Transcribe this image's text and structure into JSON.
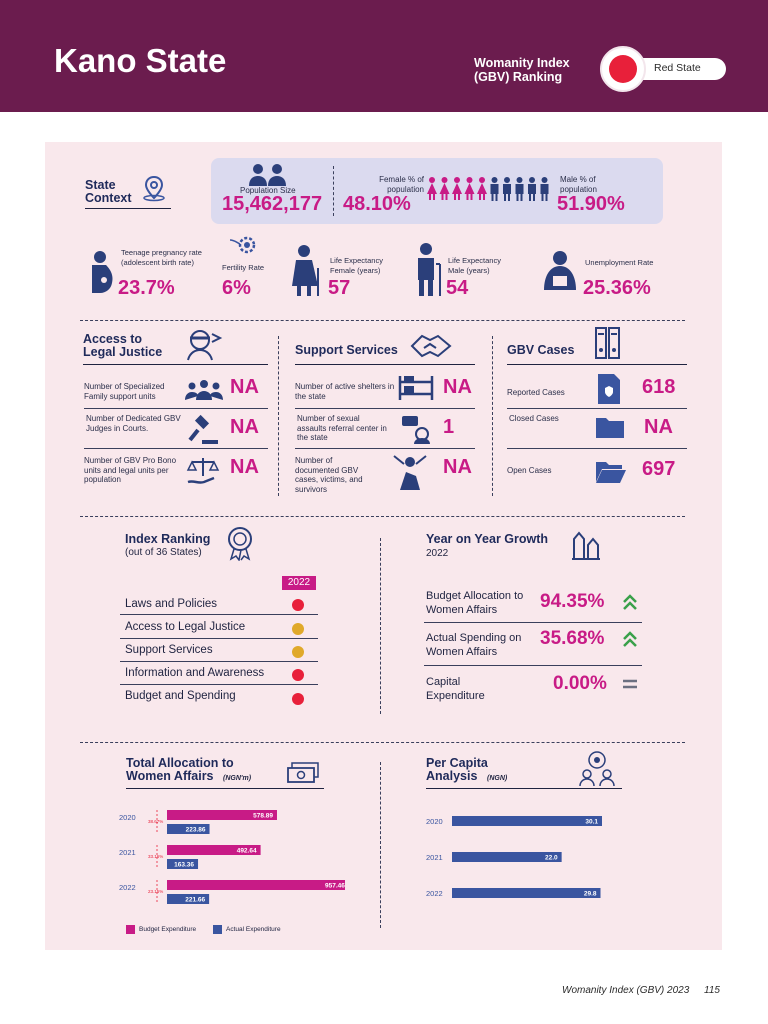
{
  "header": {
    "state_name": "Kano State",
    "index_title": "Womanity Index (GBV) Ranking",
    "ranking_label": "Red State",
    "ranking_color": "#e8203a"
  },
  "state_context": {
    "title": "State Context",
    "population_label": "Population Size",
    "population_value": "15,462,177",
    "female_label": "Female % of population",
    "female_value": "48.10%",
    "male_label": "Male % of population",
    "male_value": "51.90%",
    "teen_label": "Teenage pregnancy rate (adolescent birth rate)",
    "teen_value": "23.7%",
    "fertility_label": "Fertility Rate",
    "fertility_value": "6%",
    "life_f_label": "Life Expectancy Female (years)",
    "life_f_value": "57",
    "life_m_label": "Life Expectancy Male (years)",
    "life_m_value": "54",
    "unemp_label": "Unemployment Rate",
    "unemp_value": "25.36%"
  },
  "legal": {
    "title": "Access to Legal Justice",
    "items": [
      {
        "label": "Number of Specialized Family support units",
        "value": "NA"
      },
      {
        "label": "Number of Dedicated GBV Judges in Courts.",
        "value": "NA"
      },
      {
        "label": "Number of GBV Pro Bono units and legal units per population",
        "value": "NA"
      }
    ]
  },
  "support": {
    "title": "Support Services",
    "items": [
      {
        "label": "Number of active shelters in the state",
        "value": "NA"
      },
      {
        "label": "Number of sexual assaults referral center in the state",
        "value": "1"
      },
      {
        "label": "Number of documented GBV cases, victims, and survivors",
        "value": "NA"
      }
    ]
  },
  "gbv": {
    "title": "GBV Cases",
    "items": [
      {
        "label": "Reported Cases",
        "value": "618"
      },
      {
        "label": "Closed Cases",
        "value": "NA"
      },
      {
        "label": "Open Cases",
        "value": "697"
      }
    ]
  },
  "index_ranking": {
    "title": "Index Ranking",
    "subtitle": "(out of 36 States)",
    "year": "2022",
    "rows": [
      {
        "label": "Laws and Policies",
        "color": "#e8203a"
      },
      {
        "label": "Access to Legal Justice",
        "color": "#e0a92a"
      },
      {
        "label": "Support Services",
        "color": "#e0a92a"
      },
      {
        "label": "Information and Awareness",
        "color": "#e8203a"
      },
      {
        "label": "Budget and Spending",
        "color": "#e8203a"
      }
    ]
  },
  "growth": {
    "title": "Year on Year Growth",
    "year": "2022",
    "rows": [
      {
        "label": "Budget Allocation to Women Affairs",
        "value": "94.35%",
        "trend": "up"
      },
      {
        "label": "Actual Spending on Women Affairs",
        "value": "35.68%",
        "trend": "up"
      },
      {
        "label": "Capital Expenditure",
        "value": "0.00%",
        "trend": "flat"
      }
    ]
  },
  "allocation": {
    "title": "Total Allocation to Women Affairs",
    "unit": "(NGN'm)",
    "legend_budget": "Budget Expenditure",
    "legend_actual": "Actual Expenditure"
  },
  "per_capita": {
    "title": "Per Capita Analysis",
    "unit": "(NGN)"
  },
  "chart_data": [
    {
      "type": "bar",
      "title": "Total Allocation to Women Affairs (NGN'm)",
      "categories": [
        "2020",
        "2021",
        "2022"
      ],
      "series": [
        {
          "name": "Budget Expenditure",
          "values": [
            578.89,
            492.64,
            957.46
          ],
          "labels": [
            "578.89",
            "492.64",
            "957.46"
          ]
        },
        {
          "name": "Actual Expenditure",
          "values": [
            223.86,
            163.36,
            221.66
          ],
          "labels": [
            "223.86",
            "163.36",
            "221.66"
          ]
        }
      ],
      "annotations": [
        "38.67%",
        "33.16%",
        "23.15%"
      ],
      "xlim": [
        0,
        1000
      ]
    },
    {
      "type": "bar",
      "title": "Per Capita Analysis (NGN)",
      "categories": [
        "2020",
        "2021",
        "2022"
      ],
      "values": [
        30.1,
        22.0,
        29.8
      ],
      "labels": [
        "30.1",
        "22.0",
        "29.8"
      ],
      "xlim": [
        0,
        40
      ]
    }
  ],
  "footer": {
    "text": "Womanity Index (GBV) 2023",
    "page": "115"
  }
}
